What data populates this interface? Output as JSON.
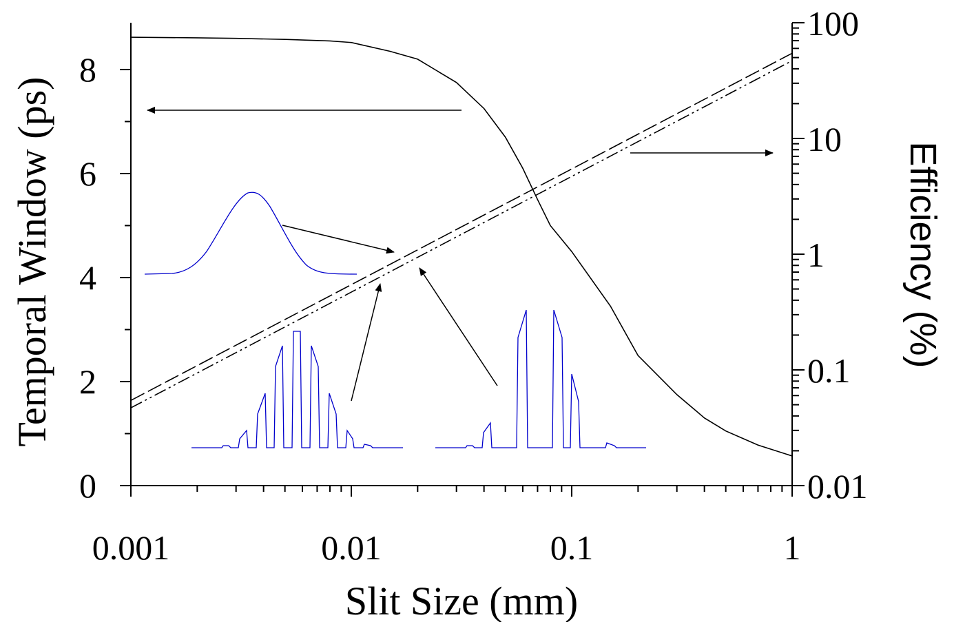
{
  "chart_data": {
    "type": "line",
    "xlabel": "Slit Size (mm)",
    "ylabel_left": "Temporal Window (ps)",
    "ylabel_right": "Efficiency (%)",
    "x_scale": "log",
    "xlim": [
      0.001,
      1
    ],
    "ylim_left": [
      0,
      9
    ],
    "ylim_right": [
      0.01,
      100
    ],
    "y_right_scale": "log",
    "grid": false,
    "x_ticks": [
      {
        "value": 0.001,
        "label": "0.001"
      },
      {
        "value": 0.01,
        "label": "0.01"
      },
      {
        "value": 0.1,
        "label": "0.1"
      },
      {
        "value": 1,
        "label": "1"
      }
    ],
    "y_left_ticks": [
      {
        "value": 0,
        "label": "0"
      },
      {
        "value": 2,
        "label": "2"
      },
      {
        "value": 4,
        "label": "4"
      },
      {
        "value": 6,
        "label": "6"
      },
      {
        "value": 8,
        "label": "8"
      }
    ],
    "y_right_ticks": [
      {
        "value": 0.01,
        "label": "0.01"
      },
      {
        "value": 0.1,
        "label": "0.1"
      },
      {
        "value": 1,
        "label": "1"
      },
      {
        "value": 10,
        "label": "10"
      },
      {
        "value": 100,
        "label": "100"
      }
    ],
    "series": [
      {
        "axis": "left",
        "style": "solid",
        "color": "#000000",
        "x": [
          0.001,
          0.002,
          0.003,
          0.005,
          0.008,
          0.01,
          0.015,
          0.02,
          0.03,
          0.04,
          0.05,
          0.06,
          0.07,
          0.08,
          0.1,
          0.15,
          0.2,
          0.3,
          0.4,
          0.5,
          0.7,
          1.0
        ],
        "y": [
          8.62,
          8.61,
          8.6,
          8.58,
          8.55,
          8.52,
          8.35,
          8.2,
          7.75,
          7.25,
          6.7,
          6.1,
          5.5,
          5.0,
          4.5,
          3.45,
          2.5,
          1.75,
          1.3,
          1.05,
          0.78,
          0.57
        ]
      },
      {
        "axis": "right",
        "style": "dashed",
        "color": "#000000",
        "x": [
          0.001,
          1.0
        ],
        "y": [
          0.0545,
          54.5
        ]
      },
      {
        "axis": "right",
        "style": "dash-dot-dot",
        "color": "#000000",
        "x": [
          0.001,
          1.0
        ],
        "y": [
          0.047,
          47.0
        ]
      }
    ],
    "annotations": {
      "arrow_color": "#000000",
      "inset_color": "#0000cc"
    }
  }
}
